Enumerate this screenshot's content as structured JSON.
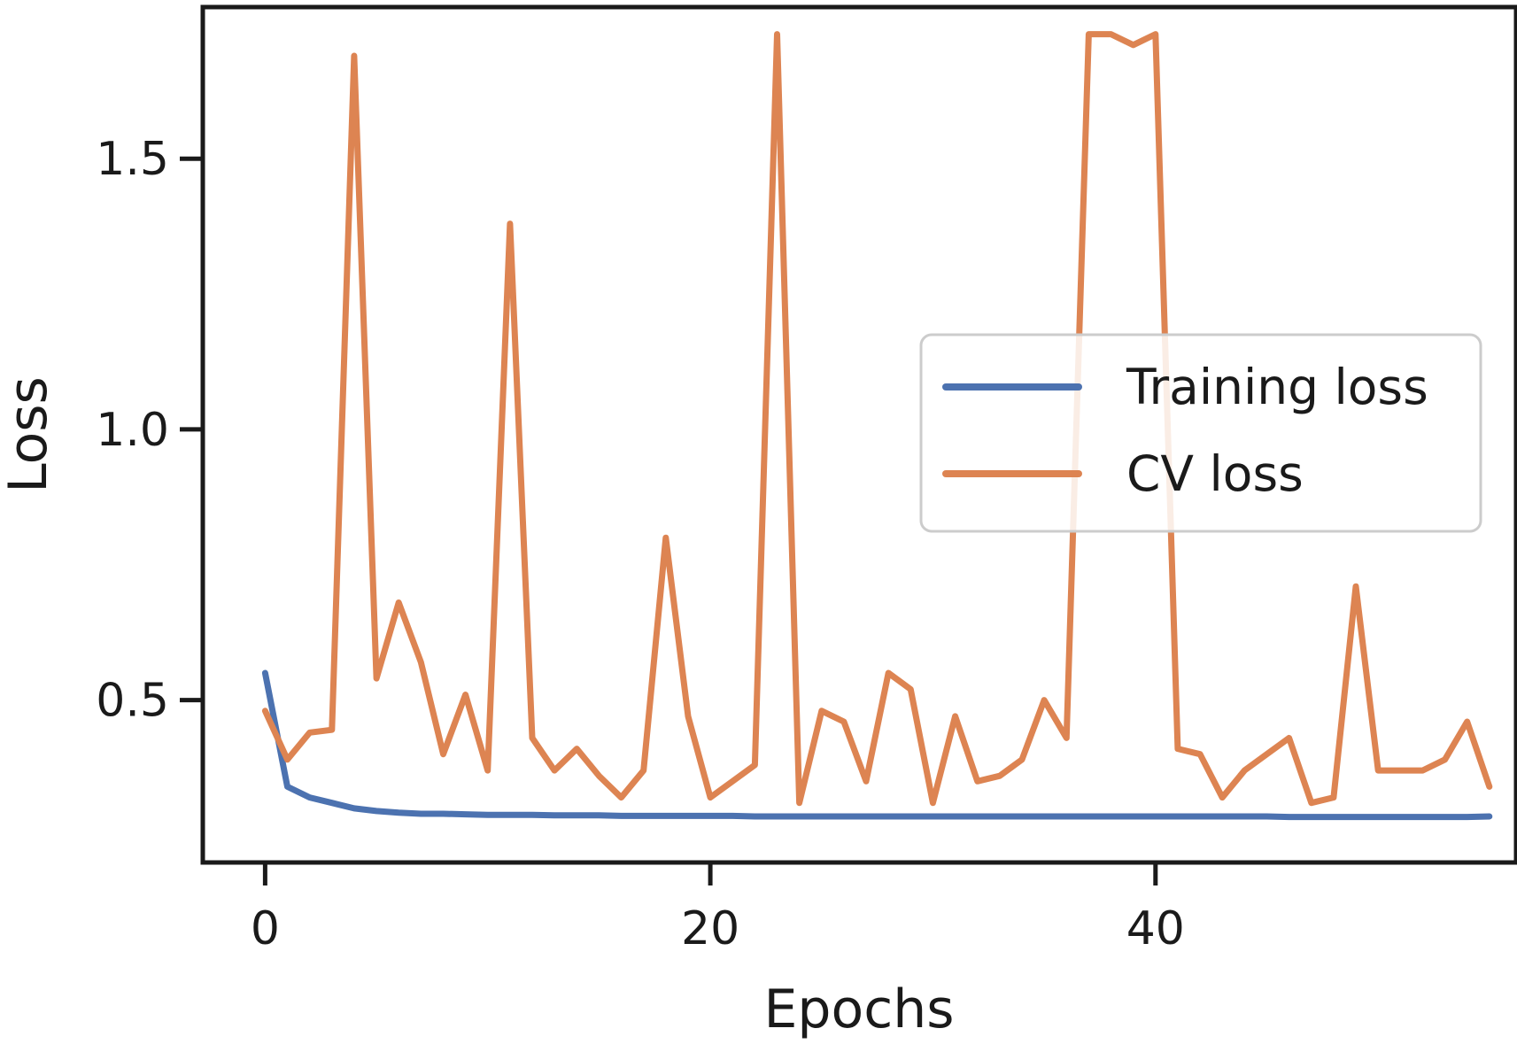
{
  "chart_data": {
    "type": "line",
    "title": "",
    "xlabel": "Epochs",
    "ylabel": "Loss",
    "xlim": [
      -2.8,
      56.2
    ],
    "ylim": [
      0.2,
      1.78
    ],
    "xticks": [
      0,
      20,
      40
    ],
    "xtick_labels": [
      "0",
      "20",
      "40"
    ],
    "yticks": [
      0.5,
      1.0,
      1.5
    ],
    "ytick_labels": [
      "0.5",
      "1.0",
      "1.5"
    ],
    "grid": false,
    "legend": {
      "position": "right"
    },
    "series": [
      {
        "name": "Training loss",
        "color": "#4c72b0",
        "x": [
          0,
          1,
          2,
          3,
          4,
          5,
          6,
          7,
          8,
          9,
          10,
          11,
          12,
          13,
          14,
          15,
          16,
          17,
          18,
          19,
          20,
          21,
          22,
          23,
          24,
          25,
          26,
          27,
          28,
          29,
          30,
          31,
          32,
          33,
          34,
          35,
          36,
          37,
          38,
          39,
          40,
          41,
          42,
          43,
          44,
          45,
          46,
          47,
          48,
          49,
          50,
          51,
          52,
          53,
          54,
          55
        ],
        "values": [
          0.55,
          0.34,
          0.32,
          0.31,
          0.3,
          0.295,
          0.292,
          0.29,
          0.29,
          0.289,
          0.288,
          0.288,
          0.288,
          0.287,
          0.287,
          0.287,
          0.286,
          0.286,
          0.286,
          0.286,
          0.286,
          0.286,
          0.285,
          0.285,
          0.285,
          0.285,
          0.285,
          0.285,
          0.285,
          0.285,
          0.285,
          0.285,
          0.285,
          0.285,
          0.285,
          0.285,
          0.285,
          0.285,
          0.285,
          0.285,
          0.285,
          0.285,
          0.285,
          0.285,
          0.285,
          0.285,
          0.284,
          0.284,
          0.284,
          0.284,
          0.284,
          0.284,
          0.284,
          0.284,
          0.284,
          0.285
        ]
      },
      {
        "name": "CV loss",
        "color": "#dd8452",
        "x": [
          0,
          1,
          2,
          3,
          4,
          5,
          6,
          7,
          8,
          9,
          10,
          11,
          12,
          13,
          14,
          15,
          16,
          17,
          18,
          19,
          20,
          21,
          22,
          23,
          24,
          25,
          26,
          27,
          28,
          29,
          30,
          31,
          32,
          33,
          34,
          35,
          36,
          37,
          38,
          39,
          40,
          41,
          42,
          43,
          44,
          45,
          46,
          47,
          48,
          49,
          50,
          51,
          52,
          53,
          54,
          55
        ],
        "values": [
          0.48,
          0.39,
          0.44,
          0.445,
          1.69,
          0.54,
          0.68,
          0.57,
          0.4,
          0.51,
          0.37,
          1.38,
          0.43,
          0.37,
          0.41,
          0.36,
          0.32,
          0.37,
          0.8,
          0.47,
          0.32,
          0.35,
          0.38,
          1.73,
          0.31,
          0.48,
          0.46,
          0.35,
          0.55,
          0.52,
          0.31,
          0.47,
          0.35,
          0.36,
          0.39,
          0.5,
          0.43,
          1.73,
          1.73,
          1.71,
          1.73,
          0.41,
          0.4,
          0.32,
          0.37,
          0.4,
          0.43,
          0.31,
          0.32,
          0.71,
          0.37,
          0.37,
          0.37,
          0.39,
          0.46,
          0.34
        ]
      }
    ]
  }
}
